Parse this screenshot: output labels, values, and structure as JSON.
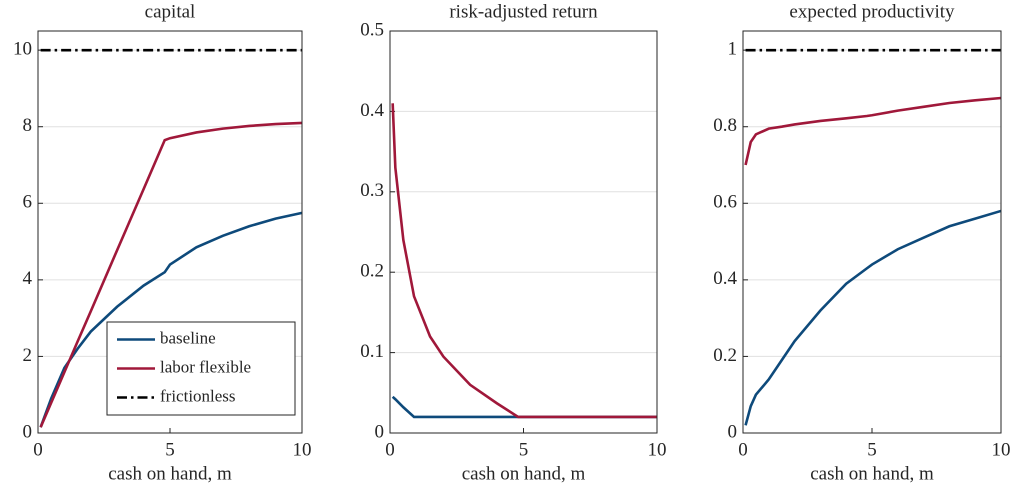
{
  "chart_data": [
    {
      "type": "line",
      "title": "capital",
      "xlabel": "cash on hand, m",
      "x": [
        0.1,
        0.5,
        1,
        1.5,
        2,
        3,
        4,
        4.8,
        5,
        6,
        7,
        8,
        9,
        10
      ],
      "series": [
        {
          "name": "baseline",
          "color": "#0e4a7b",
          "values": [
            0.15,
            0.9,
            1.7,
            2.2,
            2.65,
            3.3,
            3.85,
            4.2,
            4.4,
            4.85,
            5.15,
            5.4,
            5.6,
            5.75
          ]
        },
        {
          "name": "labor flexible",
          "color": "#a0183a",
          "values": [
            0.15,
            0.79,
            1.59,
            2.39,
            3.18,
            4.78,
            6.37,
            7.65,
            7.7,
            7.85,
            7.95,
            8.02,
            8.07,
            8.1
          ]
        },
        {
          "name": "frictionless",
          "color": "#000000",
          "dash": "dashdot",
          "values": [
            10,
            10,
            10,
            10,
            10,
            10,
            10,
            10,
            10,
            10,
            10,
            10,
            10,
            10
          ]
        }
      ],
      "xlim": [
        0,
        10
      ],
      "xticks": [
        0,
        5,
        10
      ],
      "ylim": [
        0,
        10.5
      ],
      "yticks": [
        0,
        2,
        4,
        6,
        8,
        10
      ],
      "grid": true,
      "legend": "lower right"
    },
    {
      "type": "line",
      "title": "risk-adjusted return",
      "xlabel": "cash on hand, m",
      "x": [
        0.1,
        0.2,
        0.5,
        0.9,
        1.5,
        2,
        3,
        4,
        4.8,
        5,
        6,
        7,
        8,
        9,
        10
      ],
      "series": [
        {
          "color": "#0e4a7b",
          "values": [
            0.045,
            0.042,
            0.032,
            0.02,
            0.02,
            0.02,
            0.02,
            0.02,
            0.02,
            0.02,
            0.02,
            0.02,
            0.02,
            0.02,
            0.02
          ]
        },
        {
          "color": "#a0183a",
          "values": [
            0.41,
            0.33,
            0.24,
            0.17,
            0.12,
            0.095,
            0.06,
            0.037,
            0.02,
            0.02,
            0.02,
            0.02,
            0.02,
            0.02,
            0.02
          ]
        }
      ],
      "xlim": [
        0,
        10
      ],
      "xticks": [
        0,
        5,
        10
      ],
      "ylim": [
        0,
        0.5
      ],
      "yticks": [
        0,
        0.1,
        0.2,
        0.3,
        0.4,
        0.5
      ],
      "grid": true
    },
    {
      "type": "line",
      "title": "expected productivity",
      "xlabel": "cash on hand, m",
      "x": [
        0.1,
        0.3,
        0.5,
        1,
        1.5,
        2,
        3,
        4,
        4.8,
        5,
        6,
        7,
        8,
        9,
        10
      ],
      "series": [
        {
          "color": "#0e4a7b",
          "values": [
            0.02,
            0.07,
            0.1,
            0.14,
            0.19,
            0.24,
            0.32,
            0.39,
            0.43,
            0.44,
            0.48,
            0.51,
            0.54,
            0.56,
            0.58
          ]
        },
        {
          "color": "#a0183a",
          "values": [
            0.7,
            0.76,
            0.78,
            0.795,
            0.8,
            0.806,
            0.815,
            0.822,
            0.828,
            0.83,
            0.842,
            0.852,
            0.862,
            0.869,
            0.875
          ]
        },
        {
          "color": "#000000",
          "dash": "dashdot",
          "values": [
            1,
            1,
            1,
            1,
            1,
            1,
            1,
            1,
            1,
            1,
            1,
            1,
            1,
            1,
            1
          ]
        }
      ],
      "xlim": [
        0,
        10
      ],
      "xticks": [
        0,
        5,
        10
      ],
      "ylim": [
        0,
        1.05
      ],
      "yticks": [
        0,
        0.2,
        0.4,
        0.6,
        0.8,
        1
      ],
      "grid": true
    }
  ]
}
